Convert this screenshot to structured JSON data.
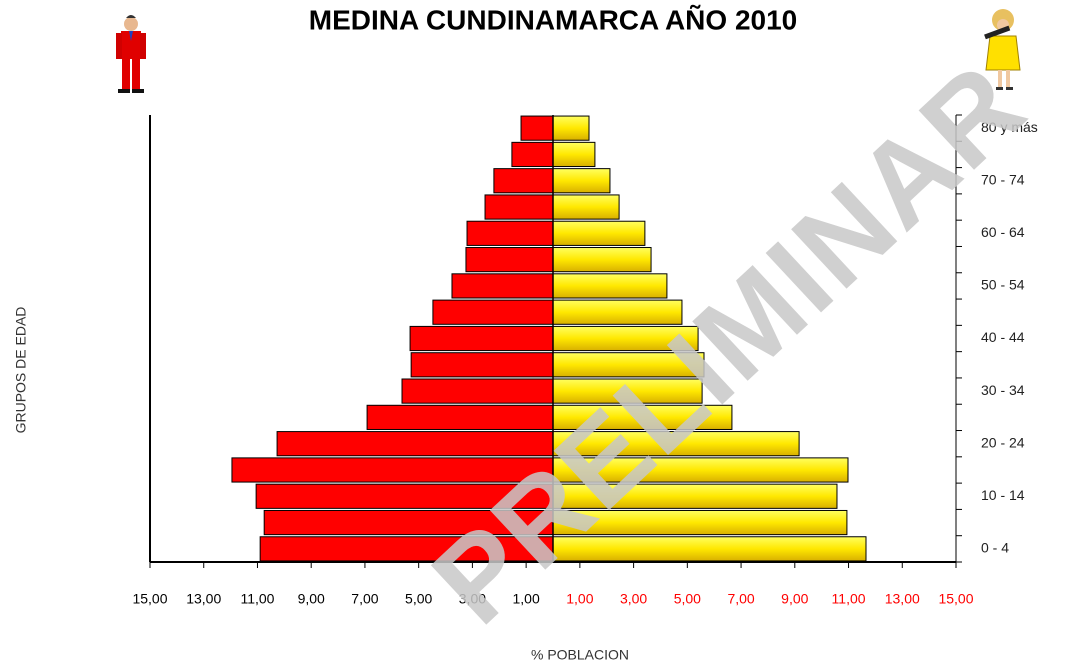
{
  "chart_data": {
    "type": "pyramid",
    "title": "MEDINA CUNDINAMARCA AÑO  2010",
    "x_label": "% POBLACION",
    "y_label": "GRUPOS DE EDAD",
    "watermark": "PRELIMINAR",
    "categories": [
      "0 - 4",
      null,
      "10 - 14",
      null,
      "20 - 24",
      null,
      "30 - 34",
      null,
      "40 - 44",
      null,
      "50 - 54",
      null,
      "60 - 64",
      null,
      "70 - 74",
      null,
      "80 y más"
    ],
    "series": [
      {
        "color": "#ff0000",
        "values": [
          -10.9,
          -10.75,
          -11.05,
          -11.95,
          -10.27,
          -6.92,
          -5.62,
          -5.28,
          -5.32,
          -4.47,
          -3.76,
          -3.24,
          -3.2,
          -2.53,
          -2.2,
          -1.53,
          -1.19
        ]
      },
      {
        "color": "#ffff00",
        "values": [
          11.65,
          10.94,
          10.57,
          10.98,
          9.16,
          6.66,
          5.55,
          5.62,
          5.4,
          4.8,
          4.24,
          3.65,
          3.42,
          2.46,
          2.12,
          1.56,
          1.34
        ]
      }
    ],
    "xlim": [
      -15,
      15
    ],
    "xticks": [
      {
        "value": -15,
        "label": "15,00"
      },
      {
        "value": -13,
        "label": "13,00"
      },
      {
        "value": -11,
        "label": "11,00"
      },
      {
        "value": -9,
        "label": "9,00"
      },
      {
        "value": -7,
        "label": "7,00"
      },
      {
        "value": -5,
        "label": "5,00"
      },
      {
        "value": -3,
        "label": "3,00"
      },
      {
        "value": -1,
        "label": "1,00"
      },
      {
        "value": 1,
        "label": "1,00"
      },
      {
        "value": 3,
        "label": "3,00"
      },
      {
        "value": 5,
        "label": "5,00"
      },
      {
        "value": 7,
        "label": "7,00"
      },
      {
        "value": 9,
        "label": "9,00"
      },
      {
        "value": 11,
        "label": "11,00"
      },
      {
        "value": 13,
        "label": "13,00"
      },
      {
        "value": 15,
        "label": "15,00"
      }
    ],
    "xtick_colors": {
      "negative": "#000000",
      "positive": "#ff0000"
    }
  }
}
